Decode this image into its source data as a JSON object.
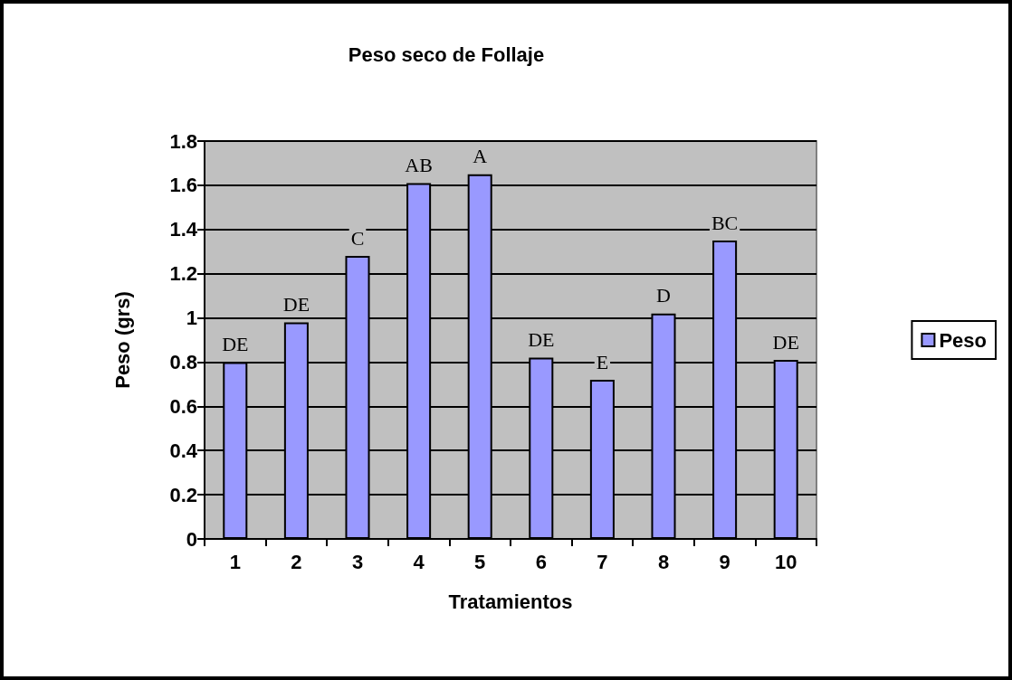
{
  "chart_data": {
    "type": "bar",
    "title": "Peso seco de Follaje",
    "xlabel": "Tratamientos",
    "ylabel": "Peso (grs)",
    "categories": [
      "1",
      "2",
      "3",
      "4",
      "5",
      "6",
      "7",
      "8",
      "9",
      "10"
    ],
    "series": [
      {
        "name": "Peso",
        "color": "#9999ff",
        "values": [
          0.8,
          0.98,
          1.28,
          1.61,
          1.65,
          0.82,
          0.72,
          1.02,
          1.35,
          0.81
        ],
        "value_labels": [
          "DE",
          "DE",
          "C",
          "AB",
          "A",
          "DE",
          "E",
          "D",
          "BC",
          "DE"
        ]
      }
    ],
    "ylim": [
      0,
      1.8
    ],
    "yticks": [
      0,
      0.2,
      0.4,
      0.6,
      0.8,
      1,
      1.2,
      1.4,
      1.6,
      1.8
    ],
    "grid": "y",
    "legend": "right"
  }
}
